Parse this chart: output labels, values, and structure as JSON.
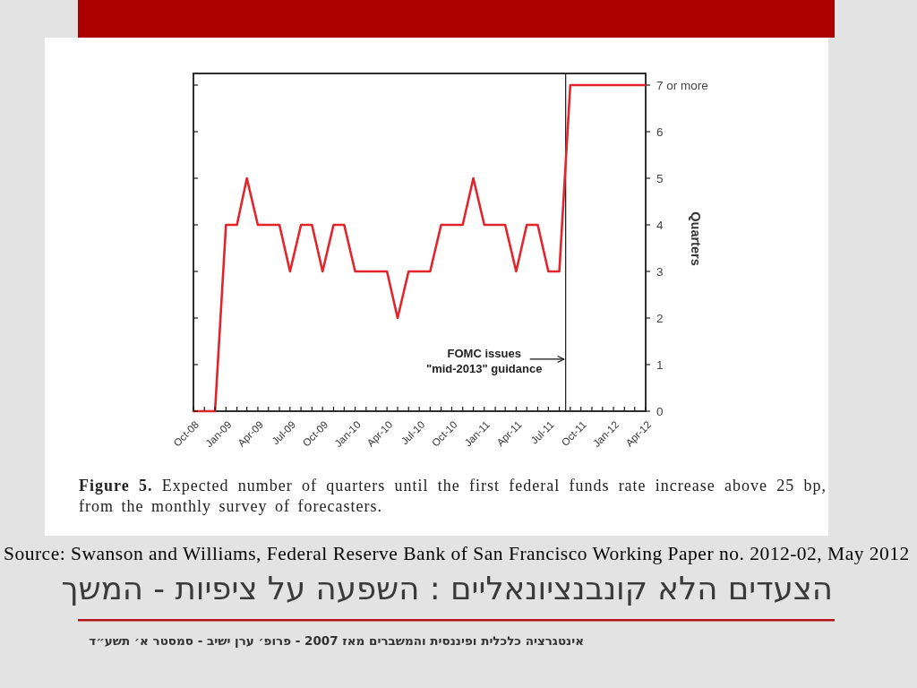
{
  "chart_data": {
    "type": "line",
    "title": "הצעדים הלא קונבנציונאליים : השפעה על ציפיות - המשך",
    "y2label": "Quarters",
    "annotations": [
      "FOMC issues\n\"mid-2013\" guidance",
      "Figure 5. Expected number of quarters until the first federal funds rate increase above 25 bp, from the monthly survey of forecasters.",
      "Source: Swanson and Williams, Federal Reserve Bank of San Francisco Working Paper no. 2012-02, May 2012",
      "אינטגרציה כלכלית ופיננסית והמשברים מאז 2007 - פרופ׳ ערן ישיב - סמסטר א׳ תשע״ד"
    ],
    "x": [
      "2008-10",
      "2008-11",
      "2008-12",
      "2009-01",
      "2009-02",
      "2009-03",
      "2009-04",
      "2009-05",
      "2009-06",
      "2009-07",
      "2009-08",
      "2009-09",
      "2009-10",
      "2009-11",
      "2009-12",
      "2010-01",
      "2010-02",
      "2010-03",
      "2010-04",
      "2010-05",
      "2010-06",
      "2010-07",
      "2010-08",
      "2010-09",
      "2010-10",
      "2010-11",
      "2010-12",
      "2011-01",
      "2011-02",
      "2011-03",
      "2011-04",
      "2011-05",
      "2011-06",
      "2011-07",
      "2011-08",
      "2011-09",
      "2011-10",
      "2011-11",
      "2011-12",
      "2012-01",
      "2012-02",
      "2012-03",
      "2012-04"
    ],
    "series": [
      {
        "color": "#e2252b",
        "axis": "y2",
        "values": [
          0,
          0,
          0,
          4,
          4,
          5,
          4,
          4,
          4,
          3,
          4,
          4,
          3,
          4,
          4,
          3,
          3,
          3,
          3,
          2,
          3,
          3,
          3,
          4,
          4,
          4,
          5,
          4,
          4,
          4,
          3,
          4,
          4,
          3,
          3,
          7,
          7,
          7,
          7,
          7,
          7,
          7,
          7
        ]
      }
    ],
    "xlim": [
      "2008-10",
      "2012-04"
    ],
    "xticks": [
      {
        "value": "2008-10",
        "label": "Oct-08"
      },
      {
        "value": "2008-11",
        "label": null
      },
      {
        "value": "2008-12",
        "label": null
      },
      {
        "value": "2009-01",
        "label": "Jan-09"
      },
      {
        "value": "2009-02",
        "label": null
      },
      {
        "value": "2009-03",
        "label": null
      },
      {
        "value": "2009-04",
        "label": "Apr-09"
      },
      {
        "value": "2009-05",
        "label": null
      },
      {
        "value": "2009-06",
        "label": null
      },
      {
        "value": "2009-07",
        "label": "Jul-09"
      },
      {
        "value": "2009-08",
        "label": null
      },
      {
        "value": "2009-09",
        "label": null
      },
      {
        "value": "2009-10",
        "label": "Oct-09"
      },
      {
        "value": "2009-11",
        "label": null
      },
      {
        "value": "2009-12",
        "label": null
      },
      {
        "value": "2010-01",
        "label": "Jan-10"
      },
      {
        "value": "2010-02",
        "label": null
      },
      {
        "value": "2010-03",
        "label": null
      },
      {
        "value": "2010-04",
        "label": "Apr-10"
      },
      {
        "value": "2010-05",
        "label": null
      },
      {
        "value": "2010-06",
        "label": null
      },
      {
        "value": "2010-07",
        "label": "Jul-10"
      },
      {
        "value": "2010-08",
        "label": null
      },
      {
        "value": "2010-09",
        "label": null
      },
      {
        "value": "2010-10",
        "label": "Oct-10"
      },
      {
        "value": "2010-11",
        "label": null
      },
      {
        "value": "2010-12",
        "label": null
      },
      {
        "value": "2011-01",
        "label": "Jan-11"
      },
      {
        "value": "2011-02",
        "label": null
      },
      {
        "value": "2011-03",
        "label": null
      },
      {
        "value": "2011-04",
        "label": "Apr-11"
      },
      {
        "value": "2011-05",
        "label": null
      },
      {
        "value": "2011-06",
        "label": null
      },
      {
        "value": "2011-07",
        "label": "Jul-11"
      },
      {
        "value": "2011-08",
        "label": null
      },
      {
        "value": "2011-09",
        "label": null
      },
      {
        "value": "2011-10",
        "label": "Oct-11"
      },
      {
        "value": "2011-11",
        "label": null
      },
      {
        "value": "2011-12",
        "label": null
      },
      {
        "value": "2012-01",
        "label": "Jan-12"
      },
      {
        "value": "2012-02",
        "label": null
      },
      {
        "value": "2012-03",
        "label": null
      },
      {
        "value": "2012-04",
        "label": "Apr-12"
      }
    ],
    "y2lim": [
      0,
      7.25
    ],
    "y2ticks": [
      0,
      1,
      2,
      3,
      4,
      5,
      6,
      {
        "value": 7,
        "label": "7 or more"
      }
    ],
    "ref_lines": [
      {
        "axis": "x",
        "value": "2011-08-19",
        "color": "#000000"
      }
    ]
  }
}
